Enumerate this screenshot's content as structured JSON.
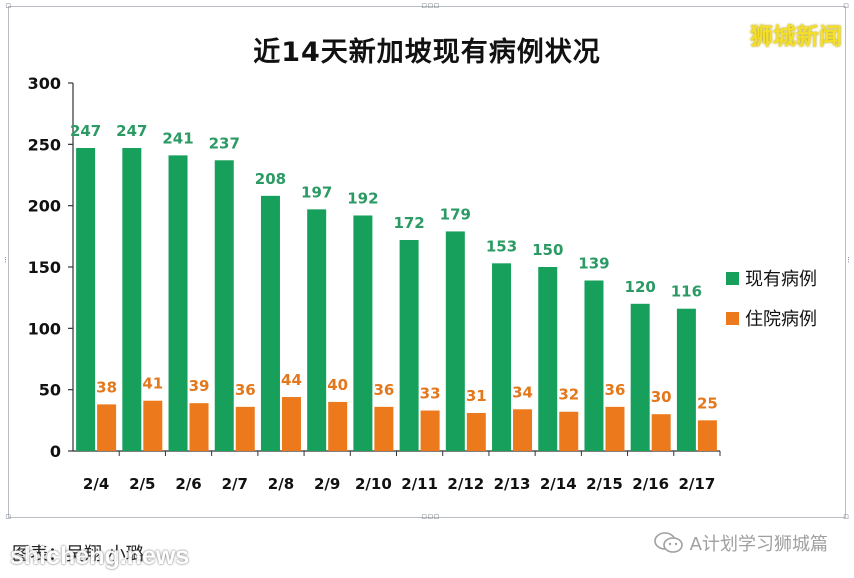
{
  "title": "近14天新加坡现有病例状况",
  "brand_logo": "狮城新闻",
  "caption": "图表：吴翔 小璐",
  "watermark": "shicheng.news",
  "wechat_credit": "A计划学习狮城篇",
  "colors": {
    "green": "#16a05c",
    "orange": "#ec7a1c",
    "green_label": "#2c9a64",
    "orange_label": "#e3781c"
  },
  "chart_data": {
    "type": "bar",
    "title": "近14天新加坡现有病例状况",
    "categories": [
      "2/4",
      "2/5",
      "2/6",
      "2/7",
      "2/8",
      "2/9",
      "2/10",
      "2/11",
      "2/12",
      "2/13",
      "2/14",
      "2/15",
      "2/16",
      "2/17"
    ],
    "series": [
      {
        "name": "现有病例",
        "color": "#16a05c",
        "values": [
          247,
          247,
          241,
          237,
          208,
          197,
          192,
          172,
          179,
          153,
          150,
          139,
          120,
          116
        ]
      },
      {
        "name": "住院病例",
        "color": "#ec7a1c",
        "values": [
          38,
          41,
          39,
          36,
          44,
          40,
          36,
          33,
          31,
          34,
          32,
          36,
          30,
          25
        ]
      }
    ],
    "ylim": [
      0,
      300
    ],
    "yticks": [
      0,
      50,
      100,
      150,
      200,
      250,
      300
    ],
    "grid": false,
    "legend_position": "right"
  }
}
